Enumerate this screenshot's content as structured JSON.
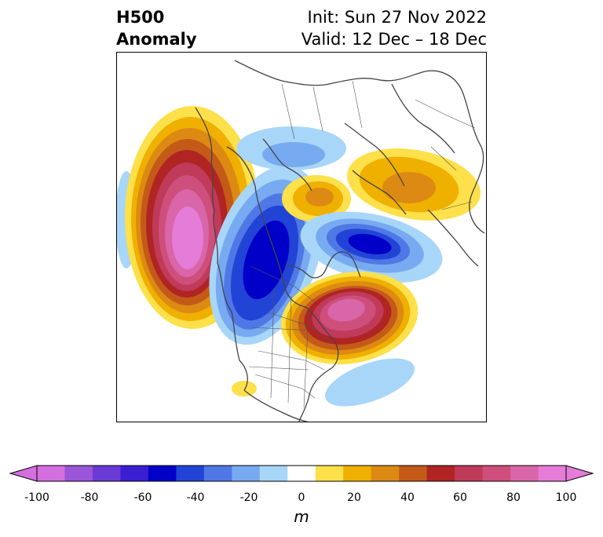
{
  "header": {
    "title_line1": "H500",
    "title_line2": "Anomaly",
    "init": "Init: Sun 27 Nov 2022",
    "valid": "Valid: 12 Dec – 18 Dec"
  },
  "colorbar": {
    "unit": "m",
    "ticks": [
      "-100",
      "-80",
      "-60",
      "-40",
      "-20",
      "0",
      "20",
      "40",
      "60",
      "80",
      "100"
    ],
    "levels": [
      -100,
      -90,
      -80,
      -70,
      -60,
      -50,
      -40,
      -30,
      -20,
      -10,
      10,
      20,
      30,
      40,
      50,
      60,
      70,
      80,
      90,
      100
    ],
    "colors": [
      "#d46fe0",
      "#9b55d8",
      "#6a3ad6",
      "#3a1ed2",
      "#0000c8",
      "#2244d6",
      "#4f78e6",
      "#77aaf0",
      "#a8d6f8",
      "#ffffff",
      "#fde04a",
      "#f0b000",
      "#dc8a14",
      "#c45a18",
      "#b02424",
      "#c03a5a",
      "#ce4e7c",
      "#d866a8",
      "#e47cd8"
    ]
  },
  "map": {
    "anomalies": [
      {
        "name": "west-coast-ridge",
        "sign": "positive",
        "peak_m": 100
      },
      {
        "name": "western-canada-trough",
        "sign": "negative",
        "peak_m": -60
      },
      {
        "name": "eastern-canada-ridge",
        "sign": "positive",
        "peak_m": 90
      },
      {
        "name": "greenland-sea-trough",
        "sign": "negative",
        "peak_m": -70
      },
      {
        "name": "arctic-positive",
        "sign": "positive",
        "peak_m": 40
      },
      {
        "name": "siberia-positive",
        "sign": "positive",
        "peak_m": 40
      },
      {
        "name": "polar-negative",
        "sign": "negative",
        "peak_m": -20
      },
      {
        "name": "atlantic-negative",
        "sign": "negative",
        "peak_m": -10
      },
      {
        "name": "pacific-negative",
        "sign": "negative",
        "peak_m": -10
      }
    ]
  }
}
